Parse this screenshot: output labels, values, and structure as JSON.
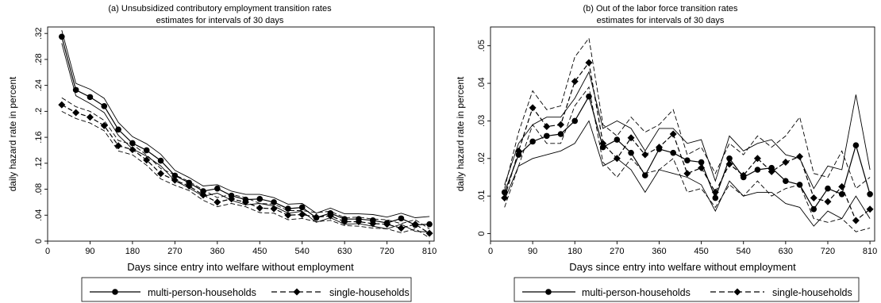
{
  "chart_data": [
    {
      "type": "line",
      "title": "(a) Unsubsidized contributory employment transition rates",
      "subtitle": "estimates for intervals of 30 days",
      "xlabel": "Days since entry into welfare without employment",
      "ylabel": "daily hazard rate in percent",
      "xlim": [
        0,
        820
      ],
      "ylim": [
        0,
        0.33
      ],
      "xticks": [
        0,
        90,
        180,
        270,
        360,
        450,
        540,
        630,
        720,
        810
      ],
      "yticks": [
        0,
        0.04,
        0.08,
        0.12,
        0.16,
        0.2,
        0.24,
        0.28,
        0.32
      ],
      "ytick_labels": [
        "0",
        ".04",
        ".08",
        ".12",
        ".16",
        ".2",
        ".24",
        ".28",
        ".32"
      ],
      "legend_position": "bottom",
      "x": [
        30,
        60,
        90,
        120,
        150,
        180,
        210,
        240,
        270,
        300,
        330,
        360,
        390,
        420,
        450,
        480,
        510,
        540,
        570,
        600,
        630,
        660,
        690,
        720,
        750,
        780,
        810
      ],
      "series": [
        {
          "name": "multi-person-households",
          "marker": "circle",
          "style": "solid",
          "values": [
            0.315,
            0.233,
            0.222,
            0.208,
            0.172,
            0.151,
            0.14,
            0.124,
            0.101,
            0.09,
            0.077,
            0.081,
            0.07,
            0.064,
            0.065,
            0.06,
            0.05,
            0.052,
            0.036,
            0.043,
            0.034,
            0.034,
            0.032,
            0.028,
            0.035,
            0.025,
            0.026
          ],
          "ci_upper": [
            0.325,
            0.243,
            0.234,
            0.22,
            0.183,
            0.161,
            0.15,
            0.134,
            0.109,
            0.098,
            0.085,
            0.087,
            0.077,
            0.072,
            0.072,
            0.067,
            0.057,
            0.058,
            0.043,
            0.051,
            0.042,
            0.042,
            0.041,
            0.037,
            0.043,
            0.036,
            0.038
          ],
          "ci_lower": [
            0.305,
            0.224,
            0.212,
            0.198,
            0.163,
            0.142,
            0.131,
            0.116,
            0.093,
            0.082,
            0.069,
            0.074,
            0.063,
            0.056,
            0.058,
            0.054,
            0.043,
            0.046,
            0.029,
            0.036,
            0.026,
            0.027,
            0.023,
            0.019,
            0.026,
            0.015,
            0.014
          ]
        },
        {
          "name": "single-households",
          "marker": "diamond",
          "style": "dashed",
          "values": [
            0.21,
            0.198,
            0.191,
            0.178,
            0.147,
            0.141,
            0.125,
            0.104,
            0.094,
            0.085,
            0.071,
            0.06,
            0.065,
            0.06,
            0.051,
            0.05,
            0.04,
            0.041,
            0.037,
            0.039,
            0.03,
            0.03,
            0.027,
            0.026,
            0.02,
            0.026,
            0.012
          ],
          "ci_upper": [
            0.221,
            0.207,
            0.2,
            0.186,
            0.155,
            0.149,
            0.133,
            0.112,
            0.102,
            0.092,
            0.079,
            0.067,
            0.072,
            0.067,
            0.058,
            0.057,
            0.047,
            0.047,
            0.044,
            0.046,
            0.036,
            0.037,
            0.034,
            0.033,
            0.027,
            0.033,
            0.019
          ],
          "ci_lower": [
            0.2,
            0.189,
            0.182,
            0.17,
            0.139,
            0.133,
            0.117,
            0.096,
            0.086,
            0.078,
            0.063,
            0.053,
            0.058,
            0.053,
            0.044,
            0.043,
            0.033,
            0.035,
            0.03,
            0.032,
            0.024,
            0.023,
            0.02,
            0.019,
            0.013,
            0.019,
            0.005
          ]
        }
      ]
    },
    {
      "type": "line",
      "title": "(b) Out of the labor force transition rates",
      "subtitle": "estimates for intervals of 30 days",
      "xlabel": "Days since entry into welfare without employment",
      "ylabel": "daily hazard rate in percent",
      "xlim": [
        0,
        820
      ],
      "ylim": [
        -0.002,
        0.055
      ],
      "xticks": [
        0,
        90,
        180,
        270,
        360,
        450,
        540,
        630,
        720,
        810
      ],
      "yticks": [
        0,
        0.01,
        0.02,
        0.03,
        0.04,
        0.05
      ],
      "ytick_labels": [
        "0",
        ".01",
        ".02",
        ".03",
        ".04",
        ".05"
      ],
      "legend_position": "bottom",
      "x": [
        30,
        60,
        90,
        120,
        150,
        180,
        210,
        240,
        270,
        300,
        330,
        360,
        390,
        420,
        450,
        480,
        510,
        540,
        570,
        600,
        630,
        660,
        690,
        720,
        750,
        780,
        810
      ],
      "series": [
        {
          "name": "multi-person-households",
          "marker": "circle",
          "style": "solid",
          "values": [
            0.011,
            0.021,
            0.0245,
            0.026,
            0.0265,
            0.03,
            0.0365,
            0.023,
            0.025,
            0.0215,
            0.0155,
            0.0225,
            0.0215,
            0.0195,
            0.019,
            0.0095,
            0.02,
            0.015,
            0.017,
            0.0175,
            0.014,
            0.013,
            0.0065,
            0.012,
            0.0105,
            0.0235,
            0.0105
          ],
          "ci_upper": [
            0.013,
            0.024,
            0.029,
            0.031,
            0.031,
            0.036,
            0.043,
            0.028,
            0.03,
            0.028,
            0.022,
            0.028,
            0.028,
            0.024,
            0.025,
            0.014,
            0.026,
            0.022,
            0.024,
            0.025,
            0.021,
            0.02,
            0.012,
            0.018,
            0.017,
            0.037,
            0.017
          ],
          "ci_lower": [
            0.009,
            0.018,
            0.02,
            0.021,
            0.022,
            0.024,
            0.03,
            0.018,
            0.02,
            0.017,
            0.011,
            0.017,
            0.016,
            0.015,
            0.013,
            0.006,
            0.014,
            0.01,
            0.011,
            0.011,
            0.008,
            0.007,
            0.002,
            0.006,
            0.004,
            0.01,
            0.004
          ]
        },
        {
          "name": "single-households",
          "marker": "diamond",
          "style": "dashed",
          "values": [
            0.0095,
            0.022,
            0.0335,
            0.0285,
            0.029,
            0.0405,
            0.0455,
            0.024,
            0.02,
            0.0255,
            0.021,
            0.023,
            0.0265,
            0.016,
            0.0175,
            0.011,
            0.0185,
            0.0155,
            0.02,
            0.0165,
            0.019,
            0.0205,
            0.0095,
            0.0085,
            0.0125,
            0.0035,
            0.0065
          ],
          "ci_upper": [
            0.012,
            0.027,
            0.038,
            0.033,
            0.034,
            0.047,
            0.052,
            0.029,
            0.026,
            0.031,
            0.027,
            0.029,
            0.033,
            0.021,
            0.023,
            0.016,
            0.024,
            0.021,
            0.026,
            0.023,
            0.026,
            0.031,
            0.016,
            0.015,
            0.022,
            0.012,
            0.015
          ],
          "ci_lower": [
            0.007,
            0.018,
            0.029,
            0.024,
            0.024,
            0.034,
            0.039,
            0.019,
            0.015,
            0.02,
            0.016,
            0.017,
            0.02,
            0.011,
            0.012,
            0.007,
            0.013,
            0.01,
            0.014,
            0.01,
            0.012,
            0.013,
            0.004,
            0.003,
            0.004,
            0.0005,
            0.0015
          ]
        }
      ]
    }
  ]
}
